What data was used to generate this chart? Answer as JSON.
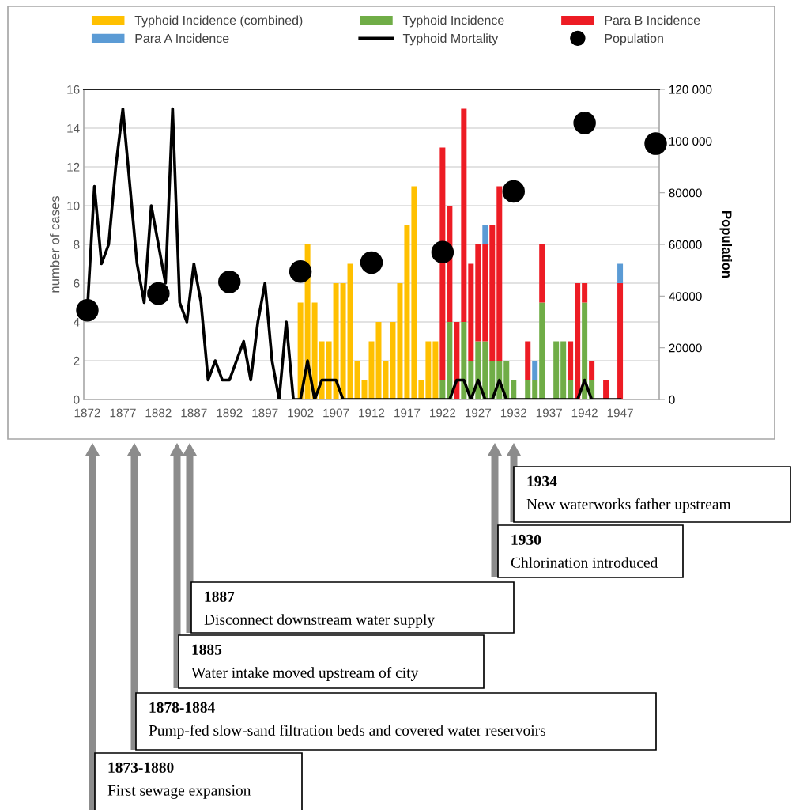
{
  "chart_data": {
    "type": "bar",
    "stacked": true,
    "ylabel": "number of cases",
    "y2label": "Population",
    "ylim": [
      0,
      16
    ],
    "yticks": [
      0,
      2,
      4,
      6,
      8,
      10,
      12,
      14,
      16
    ],
    "y2lim": [
      0,
      120000
    ],
    "y2ticks": [
      0,
      20000,
      40000,
      60000,
      80000,
      {
        "value": 100000,
        "label": "100 000"
      },
      {
        "value": 120000,
        "label": "120 000"
      }
    ],
    "grid": "y",
    "legend": "top",
    "categories": [
      "1872",
      null,
      null,
      null,
      null,
      "1877",
      null,
      null,
      null,
      null,
      "1882",
      null,
      null,
      null,
      null,
      "1887",
      null,
      null,
      null,
      null,
      "1892",
      null,
      null,
      null,
      null,
      "1897",
      null,
      null,
      null,
      null,
      "1902",
      null,
      null,
      null,
      null,
      "1907",
      null,
      null,
      null,
      null,
      "1912",
      null,
      null,
      null,
      null,
      "1917",
      null,
      null,
      null,
      null,
      "1922",
      null,
      null,
      null,
      null,
      "1927",
      null,
      null,
      null,
      null,
      "1932",
      null,
      null,
      null,
      null,
      "1937",
      null,
      null,
      null,
      null,
      "1942",
      null,
      null,
      null,
      null,
      "1947",
      null,
      null,
      null,
      null,
      null
    ],
    "series": [
      {
        "name": "Typhoid Incidence (combined)",
        "color": "#ffc000",
        "values": [
          null,
          null,
          null,
          null,
          null,
          null,
          null,
          null,
          null,
          null,
          null,
          null,
          null,
          null,
          null,
          null,
          null,
          null,
          null,
          null,
          null,
          null,
          null,
          null,
          null,
          null,
          null,
          null,
          null,
          null,
          5,
          8,
          5,
          3,
          3,
          6,
          6,
          7,
          2,
          1,
          3,
          4,
          2,
          4,
          6,
          9,
          11,
          1,
          3,
          3,
          null,
          null,
          null,
          null,
          null,
          null,
          null,
          null,
          null,
          null,
          null,
          null,
          null,
          null,
          null,
          null,
          null,
          null,
          null,
          null,
          null,
          null,
          null,
          null,
          null,
          null,
          null,
          null,
          null,
          null,
          null
        ]
      },
      {
        "name": "Typhoid Incidence",
        "color": "#70ad47",
        "values": [
          null,
          null,
          null,
          null,
          null,
          null,
          null,
          null,
          null,
          null,
          null,
          null,
          null,
          null,
          null,
          null,
          null,
          null,
          null,
          null,
          null,
          null,
          null,
          null,
          null,
          null,
          null,
          null,
          null,
          null,
          null,
          null,
          null,
          null,
          null,
          null,
          null,
          null,
          null,
          null,
          null,
          null,
          null,
          null,
          null,
          null,
          null,
          null,
          null,
          null,
          1,
          4,
          null,
          4,
          2,
          3,
          3,
          2,
          2,
          2,
          1,
          null,
          1,
          1,
          5,
          null,
          3,
          3,
          1,
          null,
          5,
          1,
          null,
          null,
          null,
          null,
          null,
          null,
          null,
          null,
          null
        ]
      },
      {
        "name": "Para B Incidence",
        "color": "#ed1c24",
        "values": [
          null,
          null,
          null,
          null,
          null,
          null,
          null,
          null,
          null,
          null,
          null,
          null,
          null,
          null,
          null,
          null,
          null,
          null,
          null,
          null,
          null,
          null,
          null,
          null,
          null,
          null,
          null,
          null,
          null,
          null,
          null,
          null,
          null,
          null,
          null,
          null,
          null,
          null,
          null,
          null,
          null,
          null,
          null,
          null,
          null,
          null,
          null,
          null,
          null,
          null,
          12,
          6,
          4,
          11,
          5,
          5,
          5,
          7,
          9,
          null,
          null,
          null,
          2,
          null,
          3,
          null,
          null,
          null,
          2,
          6,
          1,
          1,
          null,
          1,
          null,
          6,
          null,
          null,
          null,
          null,
          null
        ]
      },
      {
        "name": "Para A Incidence",
        "color": "#5b9bd5",
        "values": [
          null,
          null,
          null,
          null,
          null,
          null,
          null,
          null,
          null,
          null,
          null,
          null,
          null,
          null,
          null,
          null,
          null,
          null,
          null,
          null,
          null,
          null,
          null,
          null,
          null,
          null,
          null,
          null,
          null,
          null,
          null,
          null,
          null,
          null,
          null,
          null,
          null,
          null,
          null,
          null,
          null,
          null,
          null,
          null,
          null,
          null,
          null,
          null,
          null,
          null,
          null,
          null,
          null,
          null,
          null,
          null,
          1,
          null,
          null,
          null,
          null,
          null,
          null,
          1,
          null,
          null,
          null,
          null,
          null,
          null,
          null,
          null,
          null,
          null,
          null,
          1,
          null,
          null,
          null,
          null,
          null
        ]
      },
      {
        "name": "Typhoid Mortality",
        "type": "line",
        "color": "#000000",
        "line_style": "solid",
        "values": [
          4.6,
          11,
          7,
          8,
          12,
          15,
          11,
          7,
          5,
          10,
          8,
          6,
          15,
          5,
          4,
          7,
          5,
          1,
          2,
          1,
          1,
          2,
          3,
          1,
          4,
          6,
          2,
          0,
          4,
          0,
          0,
          2,
          0,
          1,
          1,
          1,
          0,
          0,
          0,
          0,
          0,
          0,
          0,
          0,
          0,
          0,
          0,
          0,
          0,
          0,
          0,
          0,
          1,
          1,
          0,
          1,
          0,
          0,
          1,
          0,
          0,
          0,
          0,
          0,
          0,
          0,
          0,
          0,
          0,
          0,
          1,
          0,
          0,
          0,
          0,
          0,
          null,
          null,
          null,
          null,
          null
        ]
      },
      {
        "name": "Population",
        "type": "scatter",
        "axis": "y2",
        "marker": "circle",
        "color": "#000000",
        "values": [
          34500,
          null,
          null,
          null,
          null,
          null,
          null,
          null,
          null,
          null,
          41000,
          null,
          null,
          null,
          null,
          null,
          null,
          null,
          null,
          null,
          45500,
          null,
          null,
          null,
          null,
          null,
          null,
          null,
          null,
          null,
          49500,
          null,
          null,
          null,
          null,
          null,
          null,
          null,
          null,
          null,
          53000,
          null,
          null,
          null,
          null,
          null,
          null,
          null,
          null,
          null,
          57000,
          null,
          null,
          null,
          null,
          null,
          null,
          null,
          null,
          null,
          80500,
          null,
          null,
          null,
          null,
          null,
          null,
          null,
          null,
          null,
          107000,
          null,
          null,
          null,
          null,
          null,
          null,
          null,
          null,
          null,
          99000
        ]
      }
    ],
    "annotations": [
      "1934\nNew waterworks father upstream",
      "1930\nChlorination introduced",
      "1887\nDisconnect downstream water supply",
      "1885\nWater intake moved upstream of city",
      "1878-1884\nPump-fed slow-sand filtration beds and covered water reservoirs",
      "1873-1880\nFirst sewage expansion"
    ]
  }
}
